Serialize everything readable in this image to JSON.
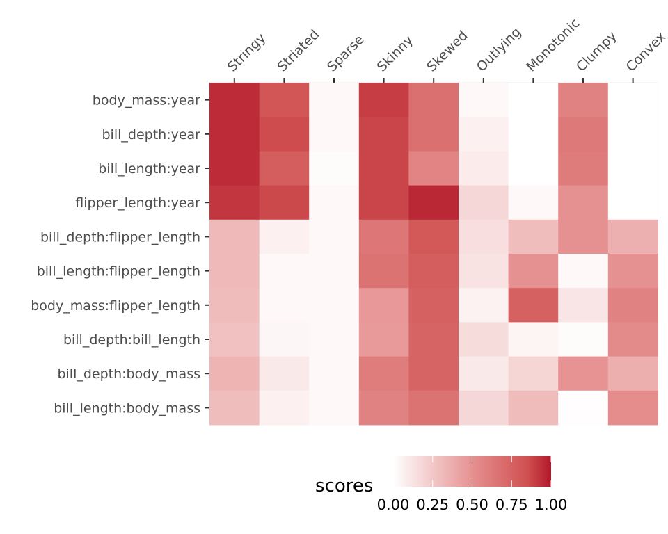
{
  "chart_data": {
    "type": "heatmap",
    "x_categories": [
      "Stringy",
      "Striated",
      "Sparse",
      "Skinny",
      "Skewed",
      "Outlying",
      "Monotonic",
      "Clumpy",
      "Convex"
    ],
    "y_categories": [
      "body_mass:year",
      "bill_depth:year",
      "bill_length:year",
      "flipper_length:year",
      "bill_depth:flipper_length",
      "bill_length:flipper_length",
      "body_mass:flipper_length",
      "bill_depth:bill_length",
      "bill_depth:body_mass",
      "bill_length:body_mass"
    ],
    "values": [
      [
        0.95,
        0.82,
        0.03,
        0.9,
        0.68,
        0.03,
        0.0,
        0.58,
        0.0
      ],
      [
        0.95,
        0.86,
        0.03,
        0.88,
        0.68,
        0.07,
        0.0,
        0.63,
        0.0
      ],
      [
        0.95,
        0.78,
        0.02,
        0.88,
        0.57,
        0.09,
        0.0,
        0.62,
        0.0
      ],
      [
        0.92,
        0.87,
        0.03,
        0.88,
        0.96,
        0.18,
        0.03,
        0.5,
        0.0
      ],
      [
        0.32,
        0.07,
        0.03,
        0.64,
        0.8,
        0.15,
        0.3,
        0.5,
        0.36
      ],
      [
        0.32,
        0.03,
        0.03,
        0.66,
        0.78,
        0.13,
        0.5,
        0.03,
        0.5
      ],
      [
        0.31,
        0.03,
        0.03,
        0.47,
        0.76,
        0.06,
        0.76,
        0.12,
        0.58
      ],
      [
        0.28,
        0.04,
        0.03,
        0.46,
        0.74,
        0.16,
        0.05,
        0.02,
        0.54
      ],
      [
        0.34,
        0.1,
        0.03,
        0.61,
        0.74,
        0.1,
        0.19,
        0.49,
        0.37
      ],
      [
        0.3,
        0.07,
        0.03,
        0.58,
        0.66,
        0.18,
        0.31,
        0.01,
        0.52
      ]
    ],
    "legend": {
      "title": "scores",
      "breaks": [
        "0.00",
        "0.25",
        "0.50",
        "0.75",
        "1.00"
      ],
      "range": [
        0,
        1
      ],
      "position": "bottom"
    },
    "colors": {
      "low": "#ffffff",
      "mid": "#d85a5a",
      "high": "#b2182b"
    }
  }
}
